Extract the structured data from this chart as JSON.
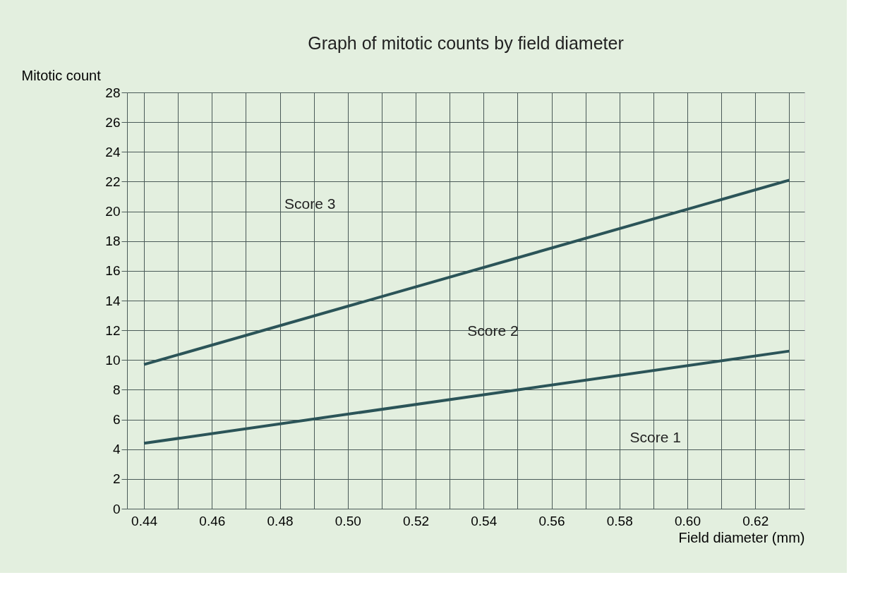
{
  "chart_data": {
    "type": "line",
    "title": "Graph of mitotic counts by field diameter",
    "xlabel": "Field diameter (mm)",
    "ylabel": "Mitotic count",
    "x": [
      0.44,
      0.63
    ],
    "series": [
      {
        "color": "#2b5458",
        "values": [
          4.4,
          10.6
        ]
      },
      {
        "color": "#2b5458",
        "values": [
          9.7,
          22.1
        ]
      }
    ],
    "annotations": [
      "Score 3",
      "Score 2",
      "Score 1"
    ],
    "xlim": [
      0.435,
      0.6345
    ],
    "ylim": [
      0,
      28
    ],
    "xticks": [
      0.44,
      {
        "value": 0.45,
        "label": null
      },
      0.46,
      {
        "value": 0.47,
        "label": null
      },
      0.48,
      {
        "value": 0.49,
        "label": null
      },
      "0.50",
      {
        "value": 0.51,
        "label": null
      },
      0.52,
      {
        "value": 0.53,
        "label": null
      },
      0.54,
      {
        "value": 0.55,
        "label": null
      },
      0.56,
      {
        "value": 0.57,
        "label": null
      },
      0.58,
      {
        "value": 0.59,
        "label": null
      },
      "0.60",
      {
        "value": 0.61,
        "label": null
      },
      0.62,
      {
        "value": 0.63,
        "label": null
      }
    ],
    "yticks": [
      0,
      2,
      4,
      6,
      8,
      10,
      12,
      14,
      16,
      18,
      20,
      22,
      24,
      26,
      28
    ],
    "grid": true,
    "marker": "none",
    "line_style": "solid"
  }
}
